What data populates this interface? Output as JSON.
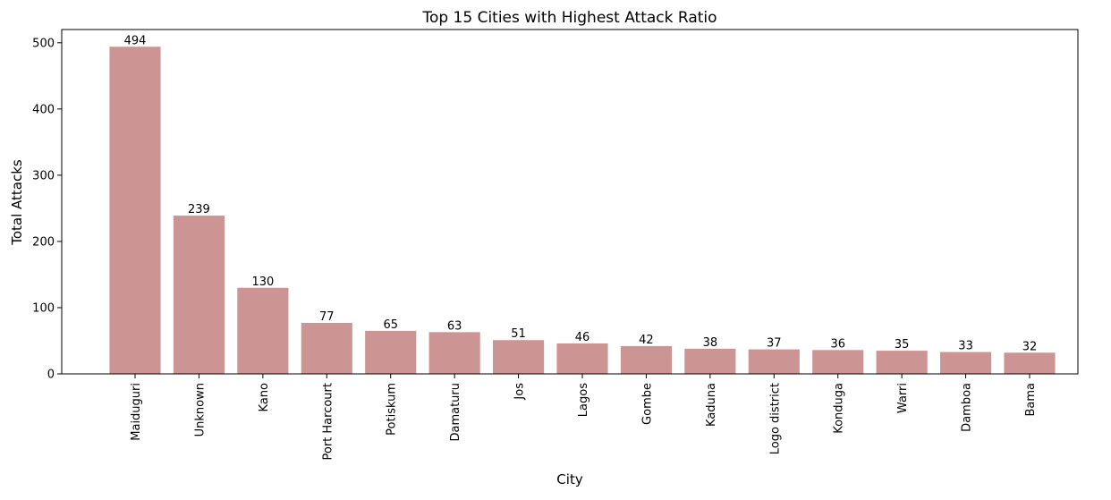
{
  "chart_data": {
    "type": "bar",
    "title": "Top 15 Cities with Highest Attack Ratio",
    "xlabel": "City",
    "ylabel": "Total Attacks",
    "categories": [
      "Maiduguri",
      "Unknown",
      "Kano",
      "Port Harcourt",
      "Potiskum",
      "Damaturu",
      "Jos",
      "Lagos",
      "Gombe",
      "Kaduna",
      "Logo district",
      "Konduga",
      "Warri",
      "Damboa",
      "Bama"
    ],
    "values": [
      494,
      239,
      130,
      77,
      65,
      63,
      51,
      46,
      42,
      38,
      37,
      36,
      35,
      33,
      32
    ],
    "ylim": [
      0,
      520
    ],
    "yticks": [
      0,
      100,
      200,
      300,
      400,
      500
    ],
    "bar_color": "#cd9494",
    "grid": false,
    "legend": "none"
  }
}
